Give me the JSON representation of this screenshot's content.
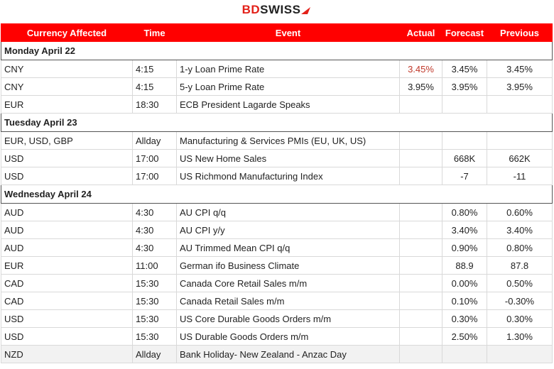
{
  "header": {
    "logo": [
      "BD",
      "SWISS"
    ]
  },
  "table": {
    "columns": [
      "Currency Affected",
      "Time",
      "Event",
      "Actual",
      "Forecast",
      "Previous"
    ],
    "sections": [
      {
        "title": "Monday April 22",
        "rows": [
          [
            "CNY",
            "4:15",
            "1-y Loan Prime Rate",
            "3.45%",
            "3.45%",
            "3.45%"
          ],
          [
            "CNY",
            "4:15",
            "5-y Loan Prime Rate",
            "3.95%",
            "3.95%",
            "3.95%"
          ],
          [
            "EUR",
            "18:30",
            "ECB President Lagarde Speaks",
            null,
            null,
            null
          ]
        ]
      },
      {
        "title": "Tuesday April 23",
        "rows": [
          [
            "EUR, USD, GBP",
            "Allday",
            "Manufacturing & Services PMIs (EU, UK, US)",
            null,
            null,
            null
          ],
          [
            "USD",
            "17:00",
            "US New Home Sales",
            null,
            "668K",
            "662K"
          ],
          [
            "USD",
            "17:00",
            "US Richmond Manufacturing Index",
            null,
            "-7",
            "-11"
          ]
        ]
      },
      {
        "title": "Wednesday April 24",
        "rows": [
          [
            "AUD",
            "4:30",
            "AU CPI q/q",
            null,
            "0.80%",
            "0.60%"
          ],
          [
            "AUD",
            "4:30",
            "AU CPI y/y",
            null,
            "3.40%",
            "3.40%"
          ],
          [
            "AUD",
            "4:30",
            "AU Trimmed Mean CPI q/q",
            null,
            "0.90%",
            "0.80%"
          ],
          [
            "EUR",
            "11:00",
            "German ifo Business Climate",
            null,
            "88.9",
            "87.8"
          ],
          [
            "CAD",
            "15:30",
            "Canada Core Retail Sales m/m",
            null,
            "0.00%",
            "0.50%"
          ],
          [
            "CAD",
            "15:30",
            "Canada Retail Sales m/m",
            null,
            "0.10%",
            "-0.30%"
          ],
          [
            "USD",
            "15:30",
            "US Core Durable Goods Orders m/m",
            null,
            "0.30%",
            "0.30%"
          ],
          [
            "USD",
            "15:30",
            "US Durable Goods Orders m/m",
            null,
            "2.50%",
            "1.30%"
          ],
          [
            "NZD",
            "Allday",
            "Bank Holiday- New Zealand - Anzac Day",
            null,
            null,
            null
          ]
        ]
      }
    ]
  }
}
